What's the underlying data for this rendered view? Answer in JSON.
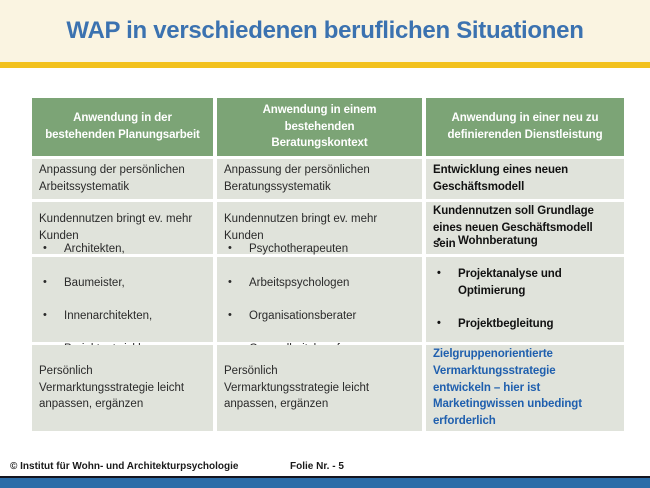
{
  "slide": {
    "title": "WAP in verschiedenen beruflichen Situationen",
    "footer": {
      "copyright": "© Institut für Wohn- und Architekturpsychologie",
      "slide_number": "Folie Nr. - 5"
    }
  },
  "colors": {
    "title_text": "#3B72B0",
    "title_band_bg": "#FAF4E1",
    "gold_bar": "#F2C11E",
    "header_bg": "#7CA476",
    "header_text": "#FFFFFF",
    "cell_bg": "#E0E3DB",
    "body_text": "#2A2A2A",
    "emphasis_text": "#111111",
    "accent_blue_text": "#1F5FAE",
    "bottom_bar": "#2B6CA8"
  },
  "table": {
    "bullet_char": "•",
    "headers": [
      "Anwendung in der\nbestehenden Planungsarbeit",
      "Anwendung in einem\nbestehenden\nBeratungskontext",
      "Anwendung in einer neu zu\ndefinierenden Dienstleistung"
    ],
    "rows": [
      {
        "cells": [
          "Anpassung der persönlichen\nArbeitssystematik",
          "Anpassung der persönlichen\nBeratungssystematik",
          "Entwicklung eines neuen\nGeschäftsmodell"
        ]
      },
      {
        "cells": [
          "Kundennutzen bringt ev. mehr\nKunden",
          "Kundennutzen bringt ev. mehr\nKunden",
          "Kundennutzen soll Grundlage\neines neuen Geschäftsmodell\nsein"
        ]
      },
      {
        "bullets": [
          [
            "Architekten,",
            "Baumeister,",
            "Innenarchitekten,",
            "Projektentwickler"
          ],
          [
            "Psychotherapeuten",
            "Arbeitspsychologen",
            "Organisationsberater",
            "Gesundheitsberufe"
          ],
          [
            "Wohnberatung",
            "Projektanalyse und\nOptimierung",
            "Projektbegleitung",
            "………"
          ]
        ]
      },
      {
        "cells": [
          "Persönlich\nVermarktungsstrategie leicht\nanpassen, ergänzen",
          "Persönlich\nVermarktungsstrategie leicht\nanpassen, ergänzen",
          "Zielgruppenorientierte\nVermarktungsstrategie\nentwickeln – hier ist\nMarketingwissen unbedingt\nerforderlich"
        ]
      }
    ]
  }
}
